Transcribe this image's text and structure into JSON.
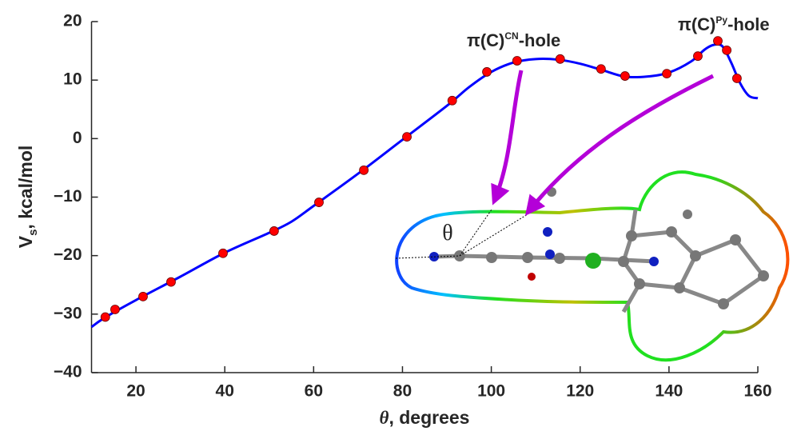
{
  "chart_data": {
    "type": "line",
    "xlabel": {
      "symbol": "θ",
      "rest": ", degrees"
    },
    "ylabel": {
      "main": "V",
      "sub": "s",
      "rest": ", kcal/mol"
    },
    "xlim": [
      10,
      160
    ],
    "xticks": [
      20,
      40,
      60,
      80,
      100,
      120,
      140,
      160
    ],
    "ylim": [
      -40,
      20
    ],
    "yticks": [
      {
        "value": -40,
        "label": "−40"
      },
      {
        "value": -30,
        "label": "−30"
      },
      {
        "value": -20,
        "label": "−20"
      },
      {
        "value": -10,
        "label": "−10"
      },
      0,
      10,
      20
    ],
    "series": [
      {
        "kind": "line",
        "color": "#0000ff",
        "x": [
          10,
          13,
          20,
          30,
          40,
          50,
          55,
          60,
          70,
          80,
          90,
          95,
          100,
          105,
          110,
          115,
          120,
          125,
          130,
          135,
          140,
          145,
          148,
          150,
          152,
          154,
          156,
          158,
          160
        ],
        "values": [
          -32.2,
          -30.6,
          -27.6,
          -23.6,
          -19.5,
          -16.1,
          -14.2,
          -11.5,
          -6.0,
          -0.2,
          5.6,
          8.8,
          11.4,
          13.0,
          13.6,
          13.5,
          12.8,
          11.7,
          10.6,
          10.6,
          11.3,
          13.2,
          15.2,
          16.0,
          15.8,
          13.0,
          9.5,
          7.3,
          6.9
        ]
      },
      {
        "kind": "scatter",
        "color": "#ff0000",
        "x": [
          13.1,
          15.3,
          21.6,
          27.9,
          39.6,
          51.1,
          61.2,
          71.3,
          81.0,
          91.2,
          99.0,
          105.8,
          115.5,
          124.7,
          130.1,
          139.5,
          146.5,
          151.0,
          153.0,
          155.3
        ],
        "values": [
          -30.5,
          -29.2,
          -27.0,
          -24.5,
          -19.6,
          -15.8,
          -10.9,
          -5.4,
          0.3,
          6.5,
          11.4,
          13.3,
          13.6,
          11.9,
          10.7,
          11.1,
          14.1,
          16.7,
          15.1,
          10.3
        ]
      }
    ],
    "annotations": [
      {
        "prefix": "π(C)",
        "superscript": "CN",
        "suffix": "-hole"
      },
      {
        "prefix": "π(C)",
        "superscript": "Py",
        "suffix": "-hole"
      },
      {
        "text": "θ"
      }
    ]
  }
}
